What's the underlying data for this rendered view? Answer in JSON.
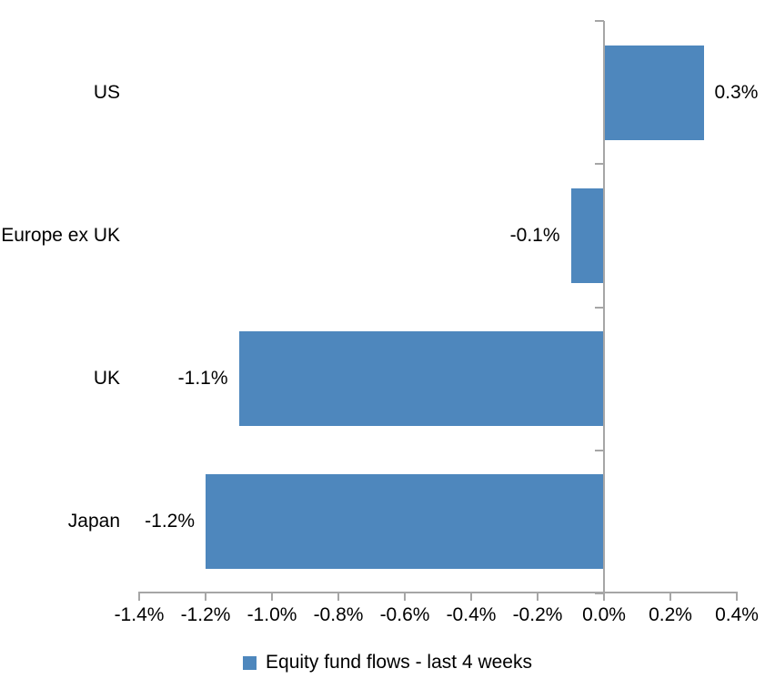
{
  "chart_data": {
    "type": "bar",
    "orientation": "horizontal",
    "categories": [
      "US",
      "Europe ex UK",
      "UK",
      "Japan"
    ],
    "values": [
      0.3,
      -0.1,
      -1.1,
      -1.2
    ],
    "value_labels": [
      "0.3%",
      "-0.1%",
      "-1.1%",
      "-1.2%"
    ],
    "xlim": [
      -1.4,
      0.4
    ],
    "x_ticks": [
      -1.4,
      -1.2,
      -1.0,
      -0.8,
      -0.6,
      -0.4,
      -0.2,
      0.0,
      0.2,
      0.4
    ],
    "x_tick_labels": [
      "-1.4%",
      "-1.2%",
      "-1.0%",
      "-0.8%",
      "-0.6%",
      "-0.4%",
      "-0.2%",
      "0.0%",
      "0.2%",
      "0.4%"
    ],
    "grid": false,
    "legend": {
      "position": "bottom",
      "entries": [
        {
          "label": "Equity fund flows - last 4 weeks",
          "color": "#4E87BD"
        }
      ]
    }
  },
  "colors": {
    "bar": "#4E87BD",
    "axis": "#A6A6A6",
    "text": "#000000",
    "background": "#FFFFFF"
  }
}
